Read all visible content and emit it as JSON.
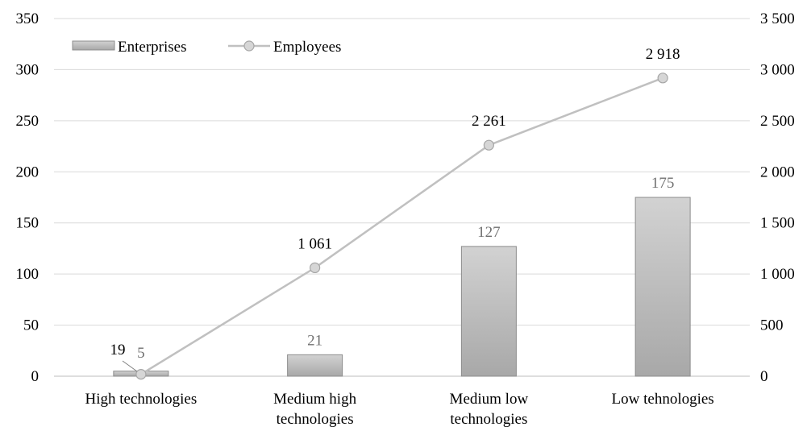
{
  "chart_data": {
    "type": "bar",
    "categories": [
      [
        "High technologies"
      ],
      [
        "Medium high",
        "technologies"
      ],
      [
        "Medium low",
        "technologies"
      ],
      [
        "Low tehnologies"
      ]
    ],
    "series": [
      {
        "name": "Enterprises",
        "type": "bar",
        "axis": "left",
        "values": [
          5,
          21,
          127,
          175
        ],
        "labels": [
          "5",
          "21",
          "127",
          "175"
        ],
        "color": "#bdbdbd"
      },
      {
        "name": "Employees",
        "type": "line",
        "axis": "right",
        "values": [
          19,
          1061,
          2261,
          2918
        ],
        "labels": [
          "19",
          "1 061",
          "2 261",
          "2 918"
        ],
        "color": "#c0c0c0"
      }
    ],
    "y_left": {
      "min": 0,
      "max": 350,
      "ticks": [
        "0",
        "50",
        "100",
        "150",
        "200",
        "250",
        "300",
        "350"
      ]
    },
    "y_right": {
      "min": 0,
      "max": 3500,
      "ticks": [
        "0",
        "500",
        "1 000",
        "1 500",
        "2 000",
        "2 500",
        "3 000",
        "3 500"
      ]
    },
    "grid": true,
    "legend_position": "top-left"
  }
}
